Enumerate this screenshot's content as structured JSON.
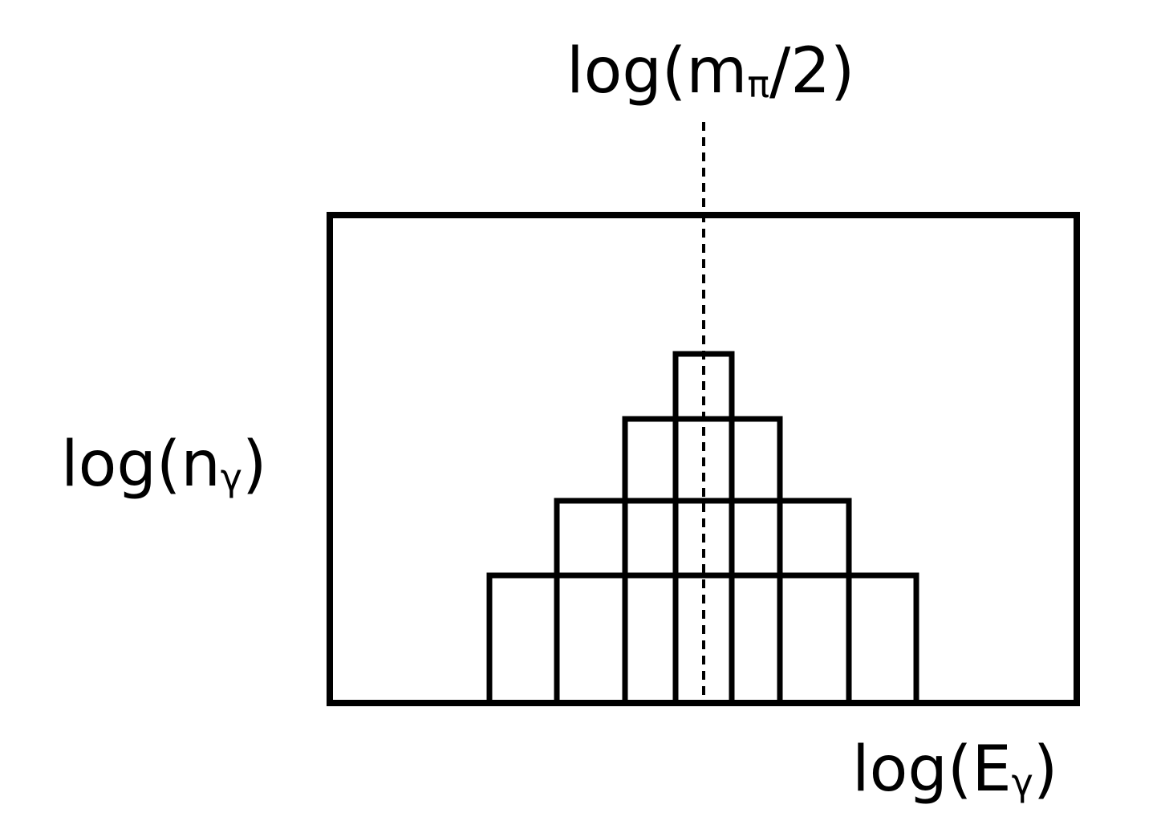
{
  "labels": {
    "marker": {
      "base": "log(m",
      "sub": "π",
      "tail": "/2)"
    },
    "y_axis": {
      "base": "log(n",
      "sub": "γ",
      "tail": ")"
    },
    "x_axis": {
      "base": "log(E",
      "sub": "γ",
      "tail": ")"
    }
  },
  "colors": {
    "stroke": "#000000",
    "background": "#ffffff"
  },
  "diagram": {
    "description_kind": "symmetric stacked boxes about a dashed center line",
    "levels": [
      {
        "level": 1,
        "box_count": 7
      },
      {
        "level": 2,
        "box_count": 5
      },
      {
        "level": 3,
        "box_count": 3
      },
      {
        "level": 4,
        "box_count": 1
      }
    ],
    "center_line_style": "dashed"
  }
}
